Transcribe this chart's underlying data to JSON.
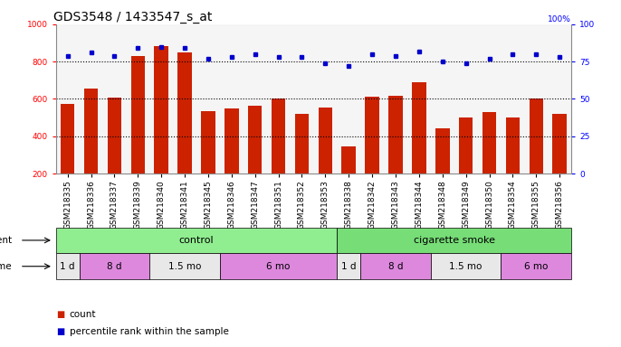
{
  "title": "GDS3548 / 1433547_s_at",
  "samples": [
    "GSM218335",
    "GSM218336",
    "GSM218337",
    "GSM218339",
    "GSM218340",
    "GSM218341",
    "GSM218345",
    "GSM218346",
    "GSM218347",
    "GSM218351",
    "GSM218352",
    "GSM218353",
    "GSM218338",
    "GSM218342",
    "GSM218343",
    "GSM218344",
    "GSM218348",
    "GSM218349",
    "GSM218350",
    "GSM218354",
    "GSM218355",
    "GSM218356"
  ],
  "counts": [
    575,
    655,
    605,
    830,
    885,
    850,
    535,
    550,
    565,
    600,
    520,
    553,
    345,
    610,
    618,
    690,
    440,
    500,
    530,
    498,
    600,
    522
  ],
  "percentiles": [
    79,
    81,
    79,
    84,
    85,
    84,
    77,
    78,
    80,
    78,
    78,
    74,
    72,
    80,
    79,
    82,
    75,
    74,
    77,
    80,
    80,
    78
  ],
  "bar_color": "#cc2200",
  "dot_color": "#0000cc",
  "ylim_left": [
    200,
    1000
  ],
  "ylim_right": [
    0,
    100
  ],
  "yticks_left": [
    200,
    400,
    600,
    800,
    1000
  ],
  "yticks_right": [
    0,
    25,
    50,
    75,
    100
  ],
  "grid_values": [
    400,
    600,
    800
  ],
  "agent_groups": [
    {
      "label": "control",
      "start": 0,
      "end": 12,
      "color": "#90ee90"
    },
    {
      "label": "cigarette smoke",
      "start": 12,
      "end": 22,
      "color": "#77dd77"
    }
  ],
  "time_groups": [
    {
      "label": "1 d",
      "start": 0,
      "end": 1,
      "color": "#e8e8e8"
    },
    {
      "label": "8 d",
      "start": 1,
      "end": 4,
      "color": "#dd88dd"
    },
    {
      "label": "1.5 mo",
      "start": 4,
      "end": 7,
      "color": "#e8e8e8"
    },
    {
      "label": "6 mo",
      "start": 7,
      "end": 12,
      "color": "#dd88dd"
    },
    {
      "label": "1 d",
      "start": 12,
      "end": 13,
      "color": "#e8e8e8"
    },
    {
      "label": "8 d",
      "start": 13,
      "end": 16,
      "color": "#dd88dd"
    },
    {
      "label": "1.5 mo",
      "start": 16,
      "end": 19,
      "color": "#e8e8e8"
    },
    {
      "label": "6 mo",
      "start": 19,
      "end": 22,
      "color": "#dd88dd"
    }
  ],
  "title_fontsize": 10,
  "tick_fontsize": 6.5,
  "row_fontsize": 7.5,
  "legend_fontsize": 7.5
}
